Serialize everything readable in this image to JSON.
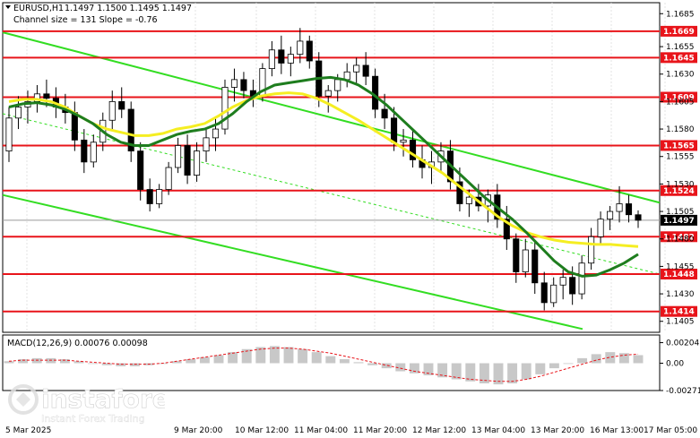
{
  "chart_data": {
    "type": "candlestick",
    "symbol": "EURUSD,H1",
    "header": {
      "ohlc": "1.1497 1.1500 1.1495 1.1497",
      "channel": "Channel size = 131 Slope = -0.76"
    },
    "y_range": [
      1.1395,
      1.1695
    ],
    "y_ticks": [
      1.1685,
      1.1655,
      1.163,
      1.1605,
      1.158,
      1.1555,
      1.153,
      1.1505,
      1.148,
      1.1455,
      1.143,
      1.1405
    ],
    "y_tick_labels": [
      "1.1685",
      "1.1655",
      "1.1630",
      "1.1605",
      "1.1580",
      "1.1555",
      "1.1530",
      "1.1505",
      "1.1480",
      "1.1455",
      "1.1430",
      "1.1405"
    ],
    "x_labels": [
      "5 Mar 2025",
      "9 Mar 20:00",
      "10 Mar 12:00",
      "11 Mar 04:00",
      "11 Mar 20:00",
      "12 Mar 12:00",
      "13 Mar 04:00",
      "13 Mar 20:00",
      "16 Mar 13:00",
      "17 Mar 05:00"
    ],
    "levels": [
      {
        "value": 1.1669,
        "label": "1.1669"
      },
      {
        "value": 1.1645,
        "label": "1.1645"
      },
      {
        "value": 1.1609,
        "label": "1.1609"
      },
      {
        "value": 1.1565,
        "label": "1.1565"
      },
      {
        "value": 1.1524,
        "label": "1.1524"
      },
      {
        "value": 1.1482,
        "label": "1.1482"
      },
      {
        "value": 1.1448,
        "label": "1.1448"
      },
      {
        "value": 1.1414,
        "label": "1.1414"
      }
    ],
    "current_price": {
      "value": 1.1497,
      "label": "1.1497"
    },
    "bars": [
      [
        1.156,
        1.16,
        1.155,
        1.159
      ],
      [
        1.159,
        1.161,
        1.158,
        1.16
      ],
      [
        1.16,
        1.1615,
        1.1585,
        1.1605
      ],
      [
        1.1605,
        1.162,
        1.1595,
        1.1612
      ],
      [
        1.1612,
        1.1625,
        1.16,
        1.1608
      ],
      [
        1.1608,
        1.1618,
        1.159,
        1.16
      ],
      [
        1.16,
        1.1612,
        1.1585,
        1.1595
      ],
      [
        1.1595,
        1.1605,
        1.156,
        1.157
      ],
      [
        1.157,
        1.158,
        1.154,
        1.155
      ],
      [
        1.155,
        1.1575,
        1.1545,
        1.1568
      ],
      [
        1.1568,
        1.1595,
        1.156,
        1.1588
      ],
      [
        1.1588,
        1.1615,
        1.158,
        1.1605
      ],
      [
        1.1605,
        1.1618,
        1.159,
        1.1598
      ],
      [
        1.1598,
        1.1605,
        1.155,
        1.156
      ],
      [
        1.156,
        1.1568,
        1.1515,
        1.1525
      ],
      [
        1.1525,
        1.1535,
        1.1505,
        1.1512
      ],
      [
        1.1512,
        1.153,
        1.1508,
        1.1525
      ],
      [
        1.1525,
        1.155,
        1.152,
        1.1545
      ],
      [
        1.1545,
        1.1572,
        1.154,
        1.1565
      ],
      [
        1.1565,
        1.1575,
        1.153,
        1.1538
      ],
      [
        1.1538,
        1.1568,
        1.1532,
        1.156
      ],
      [
        1.156,
        1.158,
        1.155,
        1.1572
      ],
      [
        1.1572,
        1.159,
        1.156,
        1.158
      ],
      [
        1.158,
        1.1625,
        1.1575,
        1.1618
      ],
      [
        1.1618,
        1.1635,
        1.1605,
        1.1625
      ],
      [
        1.1625,
        1.1632,
        1.1608,
        1.1615
      ],
      [
        1.1615,
        1.1625,
        1.16,
        1.161
      ],
      [
        1.161,
        1.164,
        1.1605,
        1.1635
      ],
      [
        1.1635,
        1.166,
        1.1628,
        1.1652
      ],
      [
        1.1652,
        1.1665,
        1.163,
        1.164
      ],
      [
        1.164,
        1.1655,
        1.1628,
        1.1648
      ],
      [
        1.1648,
        1.1672,
        1.164,
        1.166
      ],
      [
        1.166,
        1.1665,
        1.1635,
        1.1642
      ],
      [
        1.1642,
        1.165,
        1.16,
        1.161
      ],
      [
        1.161,
        1.162,
        1.1595,
        1.1615
      ],
      [
        1.1615,
        1.163,
        1.1605,
        1.1625
      ],
      [
        1.1625,
        1.164,
        1.1618,
        1.1632
      ],
      [
        1.1632,
        1.1645,
        1.162,
        1.1638
      ],
      [
        1.1638,
        1.165,
        1.162,
        1.1628
      ],
      [
        1.1628,
        1.1635,
        1.159,
        1.1598
      ],
      [
        1.1598,
        1.1612,
        1.158,
        1.159
      ],
      [
        1.159,
        1.16,
        1.156,
        1.1568
      ],
      [
        1.1568,
        1.158,
        1.1555,
        1.157
      ],
      [
        1.157,
        1.1578,
        1.1545,
        1.1552
      ],
      [
        1.1552,
        1.1565,
        1.1535,
        1.1545
      ],
      [
        1.1545,
        1.156,
        1.153,
        1.155
      ],
      [
        1.155,
        1.1568,
        1.154,
        1.156
      ],
      [
        1.156,
        1.157,
        1.1525,
        1.1532
      ],
      [
        1.1532,
        1.1545,
        1.1505,
        1.1512
      ],
      [
        1.1512,
        1.1525,
        1.15,
        1.1518
      ],
      [
        1.1518,
        1.153,
        1.1505,
        1.151
      ],
      [
        1.151,
        1.1525,
        1.1495,
        1.152
      ],
      [
        1.152,
        1.153,
        1.149,
        1.1498
      ],
      [
        1.1498,
        1.151,
        1.147,
        1.148
      ],
      [
        1.148,
        1.1485,
        1.144,
        1.145
      ],
      [
        1.145,
        1.148,
        1.1445,
        1.147
      ],
      [
        1.147,
        1.1478,
        1.143,
        1.144
      ],
      [
        1.144,
        1.145,
        1.1415,
        1.1422
      ],
      [
        1.1422,
        1.1445,
        1.1418,
        1.1438
      ],
      [
        1.1438,
        1.1452,
        1.1425,
        1.1445
      ],
      [
        1.1445,
        1.1455,
        1.142,
        1.143
      ],
      [
        1.143,
        1.1465,
        1.1425,
        1.1458
      ],
      [
        1.1458,
        1.149,
        1.1452,
        1.1482
      ],
      [
        1.1482,
        1.1505,
        1.1475,
        1.1498
      ],
      [
        1.1498,
        1.151,
        1.1488,
        1.1505
      ],
      [
        1.1505,
        1.1528,
        1.1495,
        1.1512
      ],
      [
        1.1512,
        1.152,
        1.1495,
        1.1502
      ],
      [
        1.1502,
        1.1506,
        1.149,
        1.1497
      ]
    ],
    "ma_green": [
      1.16,
      1.1603,
      1.1604,
      1.1602,
      1.1598,
      1.1592,
      1.1585,
      1.1575,
      1.1568,
      1.1565,
      1.1565,
      1.157,
      1.1575,
      1.1578,
      1.158,
      1.1585,
      1.1594,
      1.1605,
      1.1614,
      1.162,
      1.1622,
      1.1624,
      1.1626,
      1.1627,
      1.1625,
      1.162,
      1.1612,
      1.1602,
      1.159,
      1.1578,
      1.1566,
      1.1554,
      1.1542,
      1.153,
      1.1518,
      1.1508,
      1.1498,
      1.1486,
      1.1473,
      1.146,
      1.145,
      1.1446,
      1.1447,
      1.1452,
      1.1458,
      1.1466
    ],
    "ma_yellow": [
      1.1605,
      1.1607,
      1.1607,
      1.1605,
      1.16,
      1.1592,
      1.1585,
      1.158,
      1.1577,
      1.1574,
      1.1574,
      1.1576,
      1.158,
      1.1582,
      1.1585,
      1.1592,
      1.16,
      1.1606,
      1.161,
      1.1612,
      1.1613,
      1.1612,
      1.1608,
      1.1602,
      1.1595,
      1.1588,
      1.158,
      1.1572,
      1.1564,
      1.1556,
      1.1548,
      1.154,
      1.153,
      1.152,
      1.151,
      1.15,
      1.1492,
      1.1486,
      1.1482,
      1.1479,
      1.1477,
      1.1476,
      1.1475,
      1.1475,
      1.1474,
      1.1473
    ],
    "macd": {
      "label": "MACD(12,26,9) 0.00076 0.00098",
      "y_range": [
        -0.00271,
        0.0028
      ],
      "y_ticks": [
        0.00204,
        0.0,
        -0.00271
      ],
      "y_tick_labels": [
        "0.00204",
        "0.00",
        "-0.00271"
      ],
      "histogram": [
        0.0002,
        0.0004,
        0.0005,
        0.0005,
        0.0004,
        0.0002,
        0.0,
        -0.0002,
        -0.0003,
        -0.0003,
        -0.0002,
        0.0,
        0.0002,
        0.0004,
        0.0006,
        0.0008,
        0.0011,
        0.0014,
        0.0016,
        0.0017,
        0.0016,
        0.0014,
        0.0011,
        0.0007,
        0.0004,
        0.0001,
        -0.0002,
        -0.0005,
        -0.0008,
        -0.001,
        -0.0012,
        -0.0014,
        -0.0016,
        -0.0018,
        -0.002,
        -0.0021,
        -0.002,
        -0.0016,
        -0.0011,
        -0.0005,
        0.0,
        0.0005,
        0.0009,
        0.0011,
        0.001,
        0.0008
      ],
      "signal": [
        0.0002,
        0.0003,
        0.0003,
        0.0003,
        0.0003,
        0.0002,
        0.0001,
        0.0,
        -0.0001,
        -0.0001,
        -0.0001,
        0.0,
        0.0002,
        0.0004,
        0.0006,
        0.0008,
        0.001,
        0.0012,
        0.0014,
        0.0015,
        0.0015,
        0.0014,
        0.0012,
        0.001,
        0.0007,
        0.0004,
        0.0001,
        -0.0002,
        -0.0005,
        -0.0008,
        -0.001,
        -0.0012,
        -0.0014,
        -0.0016,
        -0.0017,
        -0.0018,
        -0.0018,
        -0.0016,
        -0.0013,
        -0.0009,
        -0.0005,
        -0.0001,
        0.0003,
        0.0006,
        0.0008,
        0.0009
      ]
    }
  },
  "watermark": {
    "brand": "instaforex",
    "tagline": "Instant Forex Trading"
  }
}
